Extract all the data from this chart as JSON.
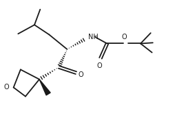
{
  "bg_color": "#ffffff",
  "line_color": "#1a1a1a",
  "line_width": 1.3,
  "fig_width": 2.54,
  "fig_height": 1.72,
  "dpi": 100,
  "xlim": [
    0,
    10.5
  ],
  "ylim": [
    0,
    7.2
  ]
}
